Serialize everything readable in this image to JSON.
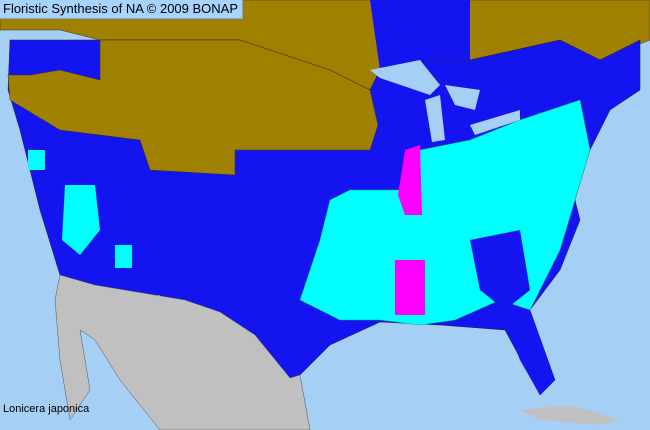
{
  "header": {
    "title": "Floristic Synthesis of NA © 2009 BONAP"
  },
  "species_label": "Lonicera japonica",
  "colors": {
    "ocean": "#a6cff5",
    "not_present_region": "#a08000",
    "state_present": "#1414f0",
    "county_present": "#00ffff",
    "noxious_or_rare": "#ff00ff",
    "outside_area": "#c0c0c0"
  }
}
